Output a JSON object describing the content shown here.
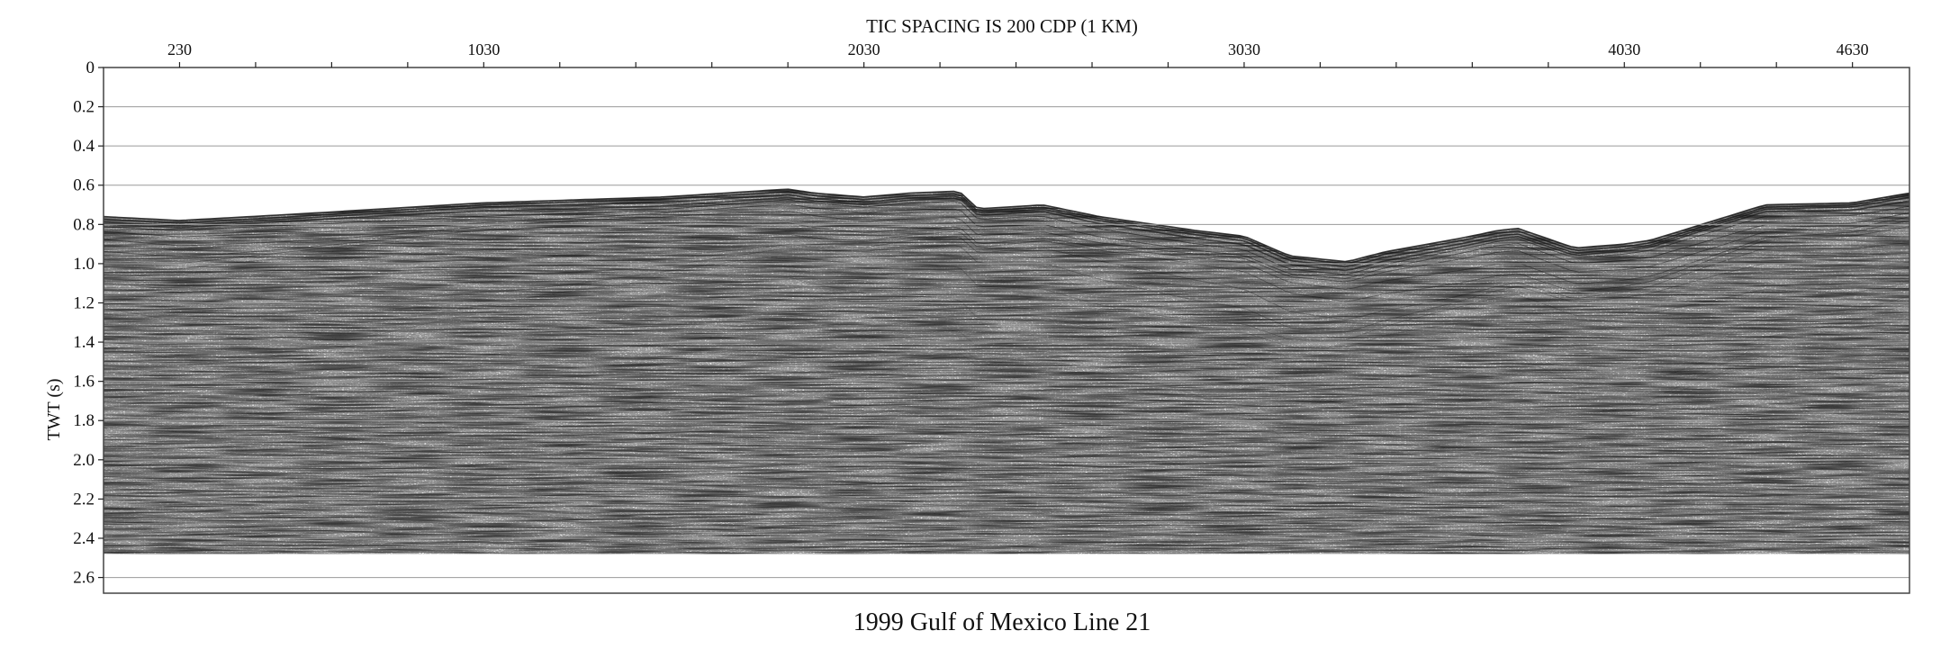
{
  "figure": {
    "top_label": "TIC SPACING IS 200 CDP (1 KM)",
    "caption": "1999 Gulf of Mexico Line 21",
    "y_axis_label": "TWT (s)",
    "x_axis_unit": "CDP",
    "x_tick_labels": [
      "230",
      "1030",
      "2030",
      "3030",
      "4030",
      "4630"
    ],
    "x_tick_label_values": [
      230,
      1030,
      2030,
      3030,
      4030,
      4630
    ],
    "x_tick_spacing": 200,
    "x_range": [
      30,
      4780
    ],
    "y_tick_labels": [
      "0",
      "0.2",
      "0.4",
      "0.6",
      "0.8",
      "1.0",
      "1.2",
      "1.4",
      "1.6",
      "1.8",
      "2.0",
      "2.2",
      "2.4",
      "2.6"
    ],
    "y_tick_values": [
      0,
      0.2,
      0.4,
      0.6,
      0.8,
      1.0,
      1.2,
      1.4,
      1.6,
      1.8,
      2.0,
      2.2,
      2.4,
      2.6
    ],
    "y_range": [
      0,
      2.68
    ],
    "record_end_twt": 2.48,
    "seafloor_twt_profile": {
      "cdp": [
        30,
        230,
        600,
        1030,
        1500,
        1830,
        1900,
        2030,
        2150,
        2280,
        2330,
        2500,
        2650,
        2900,
        3030,
        3150,
        3300,
        3400,
        3600,
        3700,
        3750,
        3900,
        4030,
        4100,
        4300,
        4400,
        4630,
        4780
      ],
      "twt": [
        0.76,
        0.78,
        0.74,
        0.69,
        0.66,
        0.62,
        0.64,
        0.66,
        0.64,
        0.63,
        0.72,
        0.7,
        0.76,
        0.83,
        0.86,
        0.96,
        0.99,
        0.94,
        0.87,
        0.83,
        0.82,
        0.92,
        0.9,
        0.88,
        0.76,
        0.7,
        0.69,
        0.64
      ]
    }
  }
}
